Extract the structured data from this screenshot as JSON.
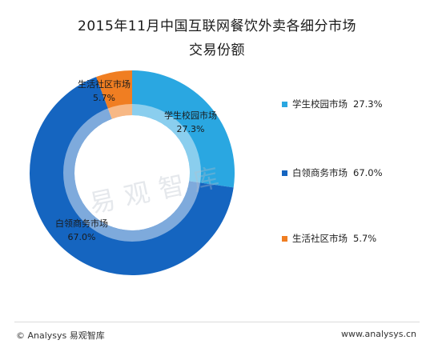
{
  "title_line1": "2015年11月中国互联网餐饮外卖各细分市场",
  "title_line2": "交易份额",
  "watermark": "易观智库",
  "footer": {
    "left": "© Analysys 易观智库",
    "right": "www.analysys.cn"
  },
  "legend": [
    {
      "label": "学生校园市场",
      "value": "27.3%",
      "color": "#2aa7e1"
    },
    {
      "label": "白领商务市场",
      "value": "67.0%",
      "color": "#1565c0"
    },
    {
      "label": "生活社区市场",
      "value": "5.7%",
      "color": "#f07e22"
    }
  ],
  "chart_data": {
    "type": "pie",
    "subtype": "donut",
    "title": "2015年11月中国互联网餐饮外卖各细分市场交易份额",
    "series": [
      {
        "name": "学生校园市场",
        "value": 27.3,
        "label": "27.3%",
        "color": "#2aa7e1"
      },
      {
        "name": "白领商务市场",
        "value": 67.0,
        "label": "67.0%",
        "color": "#1565c0"
      },
      {
        "name": "生活社区市场",
        "value": 5.7,
        "label": "5.7%",
        "color": "#f07e22"
      }
    ],
    "legend_position": "right"
  }
}
